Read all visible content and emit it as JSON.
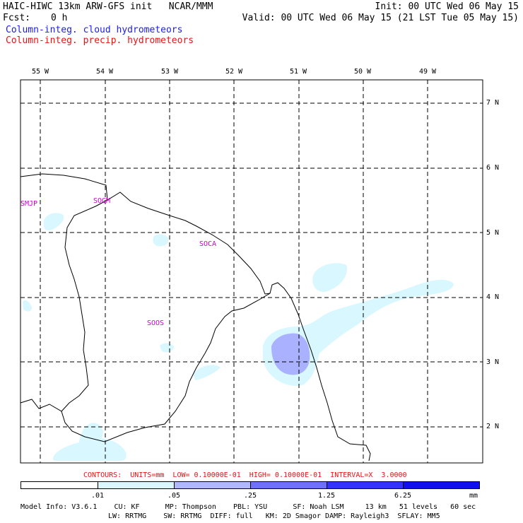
{
  "header": {
    "title": "HAIC-HIWC 13km ARW-GFS init   NCAR/MMM",
    "init": "Init: 00 UTC Wed 06 May 15",
    "fcst_label": "Fcst:",
    "fcst_value": "0 h",
    "valid": "Valid: 00 UTC Wed 06 May 15 (21 LST Tue 05 May 15)",
    "field1": "Column-integ. cloud hydrometeors",
    "field2": "Column-integ. precip. hydrometeors"
  },
  "axes": {
    "lon_labels": [
      "55 W",
      "54 W",
      "53 W",
      "52 W",
      "51 W",
      "50 W",
      "49 W"
    ],
    "lat_labels": [
      "7 N",
      "6 N",
      "5 N",
      "4 N",
      "3 N",
      "2 N"
    ]
  },
  "stations": [
    "SMJP",
    "SOGM",
    "SOCA",
    "SOOS"
  ],
  "contours_line": "CONTOURS:  UNITS=mm  LOW= 0.10000E-01  HIGH= 0.10000E-01  INTERVAL=X  3.0000",
  "colorbar": {
    "labels": [
      ".01",
      ".05",
      ".25",
      "1.25",
      "6.25"
    ],
    "units": "mm",
    "colors": [
      "#ffffff",
      "#d9f7ff",
      "#b0b8ff",
      "#7070ff",
      "#3333ff",
      "#1010ee"
    ]
  },
  "model_info": {
    "line1": "Model Info: V3.6.1    CU: KF      MP: Thompson    PBL: YSU      SF: Noah LSM     13 km   51 levels   60 sec",
    "line2": "LW: RRTMG    SW: RRTMG  DIFF: full   KM: 2D Smagor DAMP: Rayleigh3  SFLAY: MM5"
  }
}
